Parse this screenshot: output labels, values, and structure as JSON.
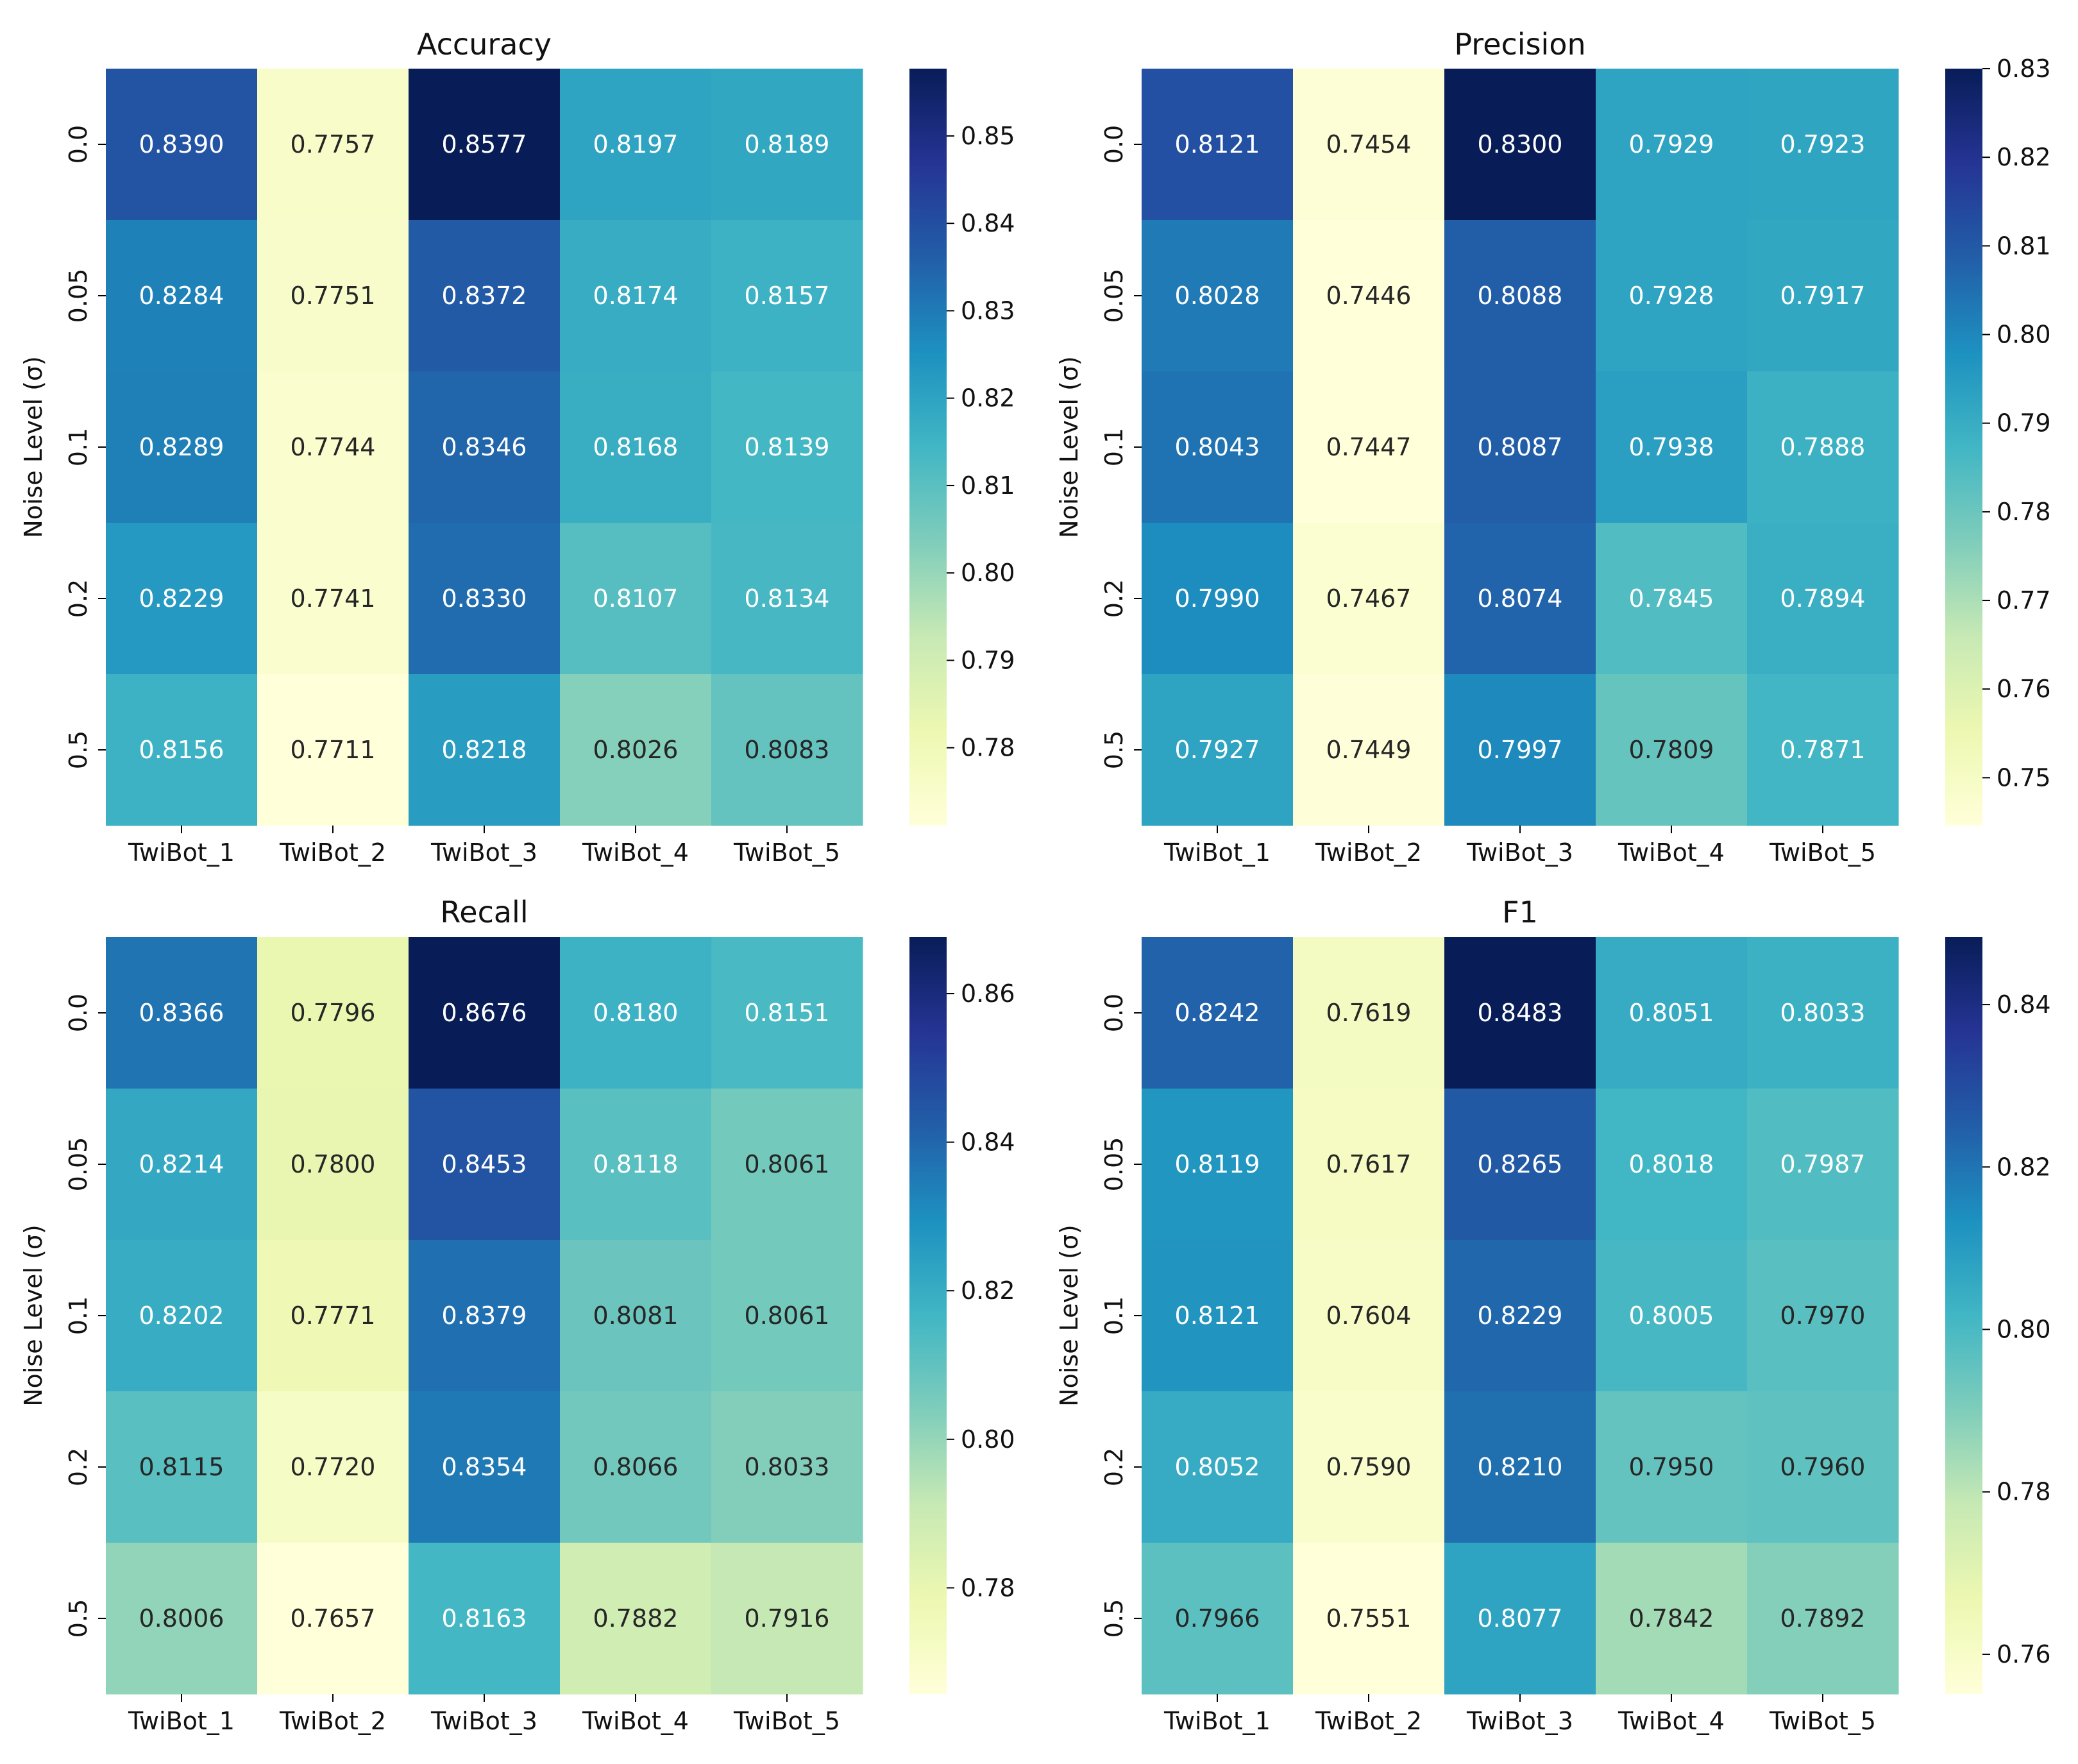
{
  "figure": {
    "colormap": "YlGnBu",
    "colormap_stops": [
      {
        "t": 0.0,
        "color": "#ffffd9"
      },
      {
        "t": 0.125,
        "color": "#edf8b1"
      },
      {
        "t": 0.25,
        "color": "#c7e9b4"
      },
      {
        "t": 0.375,
        "color": "#7fcdbb"
      },
      {
        "t": 0.5,
        "color": "#41b6c4"
      },
      {
        "t": 0.625,
        "color": "#1d91c0"
      },
      {
        "t": 0.75,
        "color": "#225ea8"
      },
      {
        "t": 0.875,
        "color": "#253494"
      },
      {
        "t": 1.0,
        "color": "#081d58"
      }
    ],
    "text_dark": "#262626",
    "text_light": "#ffffff"
  },
  "chart_data": [
    {
      "type": "heatmap",
      "title": "Accuracy",
      "xlabel": "",
      "ylabel": "Noise Level (σ)",
      "x_categories": [
        "TwiBot_1",
        "TwiBot_2",
        "TwiBot_3",
        "TwiBot_4",
        "TwiBot_5"
      ],
      "y_categories": [
        "0.0",
        "0.05",
        "0.1",
        "0.2",
        "0.5"
      ],
      "values": [
        [
          0.839,
          0.7757,
          0.8577,
          0.8197,
          0.8189
        ],
        [
          0.8284,
          0.7751,
          0.8372,
          0.8174,
          0.8157
        ],
        [
          0.8289,
          0.7744,
          0.8346,
          0.8168,
          0.8139
        ],
        [
          0.8229,
          0.7741,
          0.833,
          0.8107,
          0.8134
        ],
        [
          0.8156,
          0.7711,
          0.8218,
          0.8026,
          0.8083
        ]
      ],
      "colorbar": {
        "range": [
          0.7711,
          0.8577
        ],
        "ticks": [
          0.78,
          0.79,
          0.8,
          0.81,
          0.82,
          0.83,
          0.84,
          0.85
        ]
      }
    },
    {
      "type": "heatmap",
      "title": "Precision",
      "xlabel": "",
      "ylabel": "Noise Level (σ)",
      "x_categories": [
        "TwiBot_1",
        "TwiBot_2",
        "TwiBot_3",
        "TwiBot_4",
        "TwiBot_5"
      ],
      "y_categories": [
        "0.0",
        "0.05",
        "0.1",
        "0.2",
        "0.5"
      ],
      "values": [
        [
          0.8121,
          0.7454,
          0.83,
          0.7929,
          0.7923
        ],
        [
          0.8028,
          0.7446,
          0.8088,
          0.7928,
          0.7917
        ],
        [
          0.8043,
          0.7447,
          0.8087,
          0.7938,
          0.7888
        ],
        [
          0.799,
          0.7467,
          0.8074,
          0.7845,
          0.7894
        ],
        [
          0.7927,
          0.7449,
          0.7997,
          0.7809,
          0.7871
        ]
      ],
      "colorbar": {
        "range": [
          0.7446,
          0.83
        ],
        "ticks": [
          0.75,
          0.76,
          0.77,
          0.78,
          0.79,
          0.8,
          0.81,
          0.82,
          0.83
        ]
      }
    },
    {
      "type": "heatmap",
      "title": "Recall",
      "xlabel": "",
      "ylabel": "Noise Level (σ)",
      "x_categories": [
        "TwiBot_1",
        "TwiBot_2",
        "TwiBot_3",
        "TwiBot_4",
        "TwiBot_5"
      ],
      "y_categories": [
        "0.0",
        "0.05",
        "0.1",
        "0.2",
        "0.5"
      ],
      "values": [
        [
          0.8366,
          0.7796,
          0.8676,
          0.818,
          0.8151
        ],
        [
          0.8214,
          0.78,
          0.8453,
          0.8118,
          0.8061
        ],
        [
          0.8202,
          0.7771,
          0.8379,
          0.8081,
          0.8061
        ],
        [
          0.8115,
          0.772,
          0.8354,
          0.8066,
          0.8033
        ],
        [
          0.8006,
          0.7657,
          0.8163,
          0.7882,
          0.7916
        ]
      ],
      "colorbar": {
        "range": [
          0.7657,
          0.8676
        ],
        "ticks": [
          0.78,
          0.8,
          0.82,
          0.84,
          0.86
        ]
      }
    },
    {
      "type": "heatmap",
      "title": "F1",
      "xlabel": "",
      "ylabel": "Noise Level (σ)",
      "x_categories": [
        "TwiBot_1",
        "TwiBot_2",
        "TwiBot_3",
        "TwiBot_4",
        "TwiBot_5"
      ],
      "y_categories": [
        "0.0",
        "0.05",
        "0.1",
        "0.2",
        "0.5"
      ],
      "values": [
        [
          0.8242,
          0.7619,
          0.8483,
          0.8051,
          0.8033
        ],
        [
          0.8119,
          0.7617,
          0.8265,
          0.8018,
          0.7987
        ],
        [
          0.8121,
          0.7604,
          0.8229,
          0.8005,
          0.797
        ],
        [
          0.8052,
          0.759,
          0.821,
          0.795,
          0.796
        ],
        [
          0.7966,
          0.7551,
          0.8077,
          0.7842,
          0.7892
        ]
      ],
      "colorbar": {
        "range": [
          0.7551,
          0.8483
        ],
        "ticks": [
          0.76,
          0.78,
          0.8,
          0.82,
          0.84
        ]
      }
    }
  ]
}
